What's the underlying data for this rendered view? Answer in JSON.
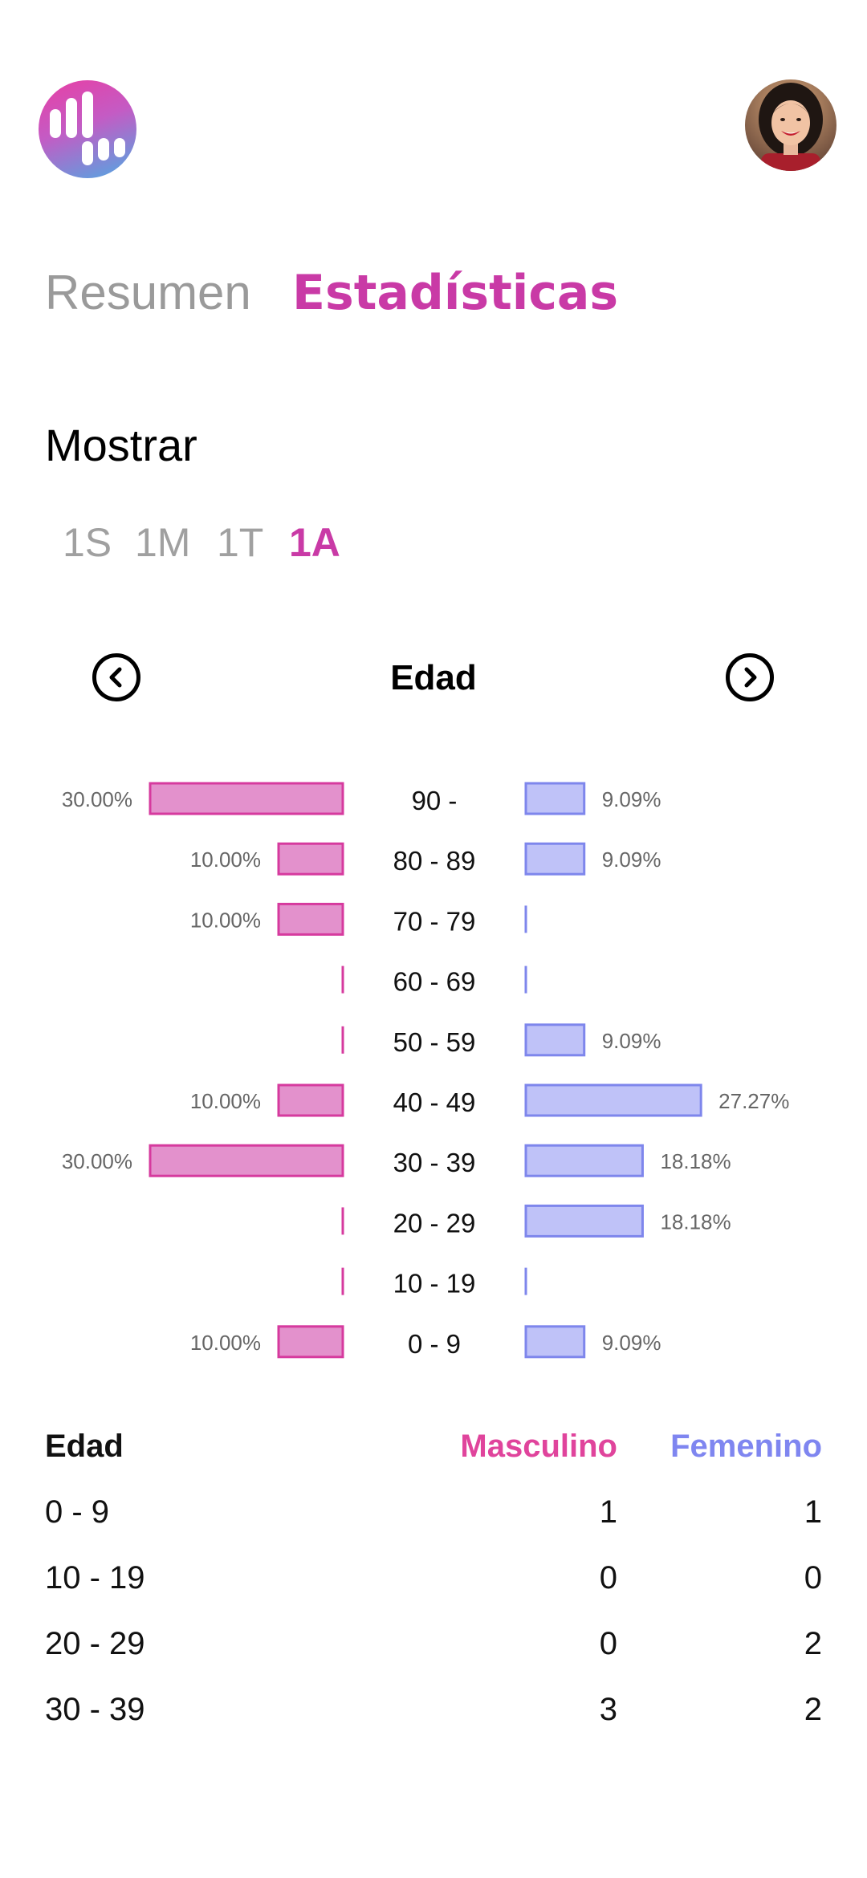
{
  "header": {
    "logo_icon": "bars-logo-icon",
    "avatar_icon": "user-avatar"
  },
  "tabs": [
    {
      "label": "Resumen",
      "active": false
    },
    {
      "label": "Estadísticas",
      "active": true
    }
  ],
  "filter": {
    "title": "Mostrar",
    "periods": [
      {
        "label": "1S",
        "active": false
      },
      {
        "label": "1M",
        "active": false
      },
      {
        "label": "1T",
        "active": false
      },
      {
        "label": "1A",
        "active": true
      }
    ]
  },
  "chart_nav": {
    "prev_icon": "chevron-left-icon",
    "next_icon": "chevron-right-icon",
    "title": "Edad"
  },
  "colors": {
    "accent": "#c93aa6",
    "male_fill": "#e391cc",
    "male_stroke": "#d63a9e",
    "female_fill": "#bfc2f8",
    "female_stroke": "#7e86ec"
  },
  "chart_data": {
    "type": "bar",
    "title": "Edad",
    "orientation": "horizontal-butterfly",
    "categories": [
      "90 -",
      "80 - 89",
      "70 - 79",
      "60 - 69",
      "50 - 59",
      "40 - 49",
      "30 - 39",
      "20 - 29",
      "10 - 19",
      "0 - 9"
    ],
    "series": [
      {
        "values": [
          30.0,
          10.0,
          10.0,
          0,
          0,
          10.0,
          30.0,
          0,
          0,
          10.0
        ],
        "labels": [
          "30.00%",
          "10.00%",
          "10.00%",
          "",
          "",
          "10.00%",
          "30.00%",
          "",
          "",
          "10.00%"
        ]
      },
      {
        "values": [
          9.09,
          9.09,
          0,
          0,
          9.09,
          27.27,
          18.18,
          18.18,
          0,
          9.09
        ],
        "labels": [
          "9.09%",
          "9.09%",
          "",
          "",
          "9.09%",
          "27.27%",
          "18.18%",
          "18.18%",
          "",
          "9.09%"
        ]
      }
    ]
  },
  "table": {
    "headers": [
      "Edad",
      "Masculino",
      "Femenino"
    ],
    "rows": [
      [
        "0 - 9",
        "1",
        "1"
      ],
      [
        "10 - 19",
        "0",
        "0"
      ],
      [
        "20 - 29",
        "0",
        "2"
      ],
      [
        "30 - 39",
        "3",
        "2"
      ]
    ]
  }
}
